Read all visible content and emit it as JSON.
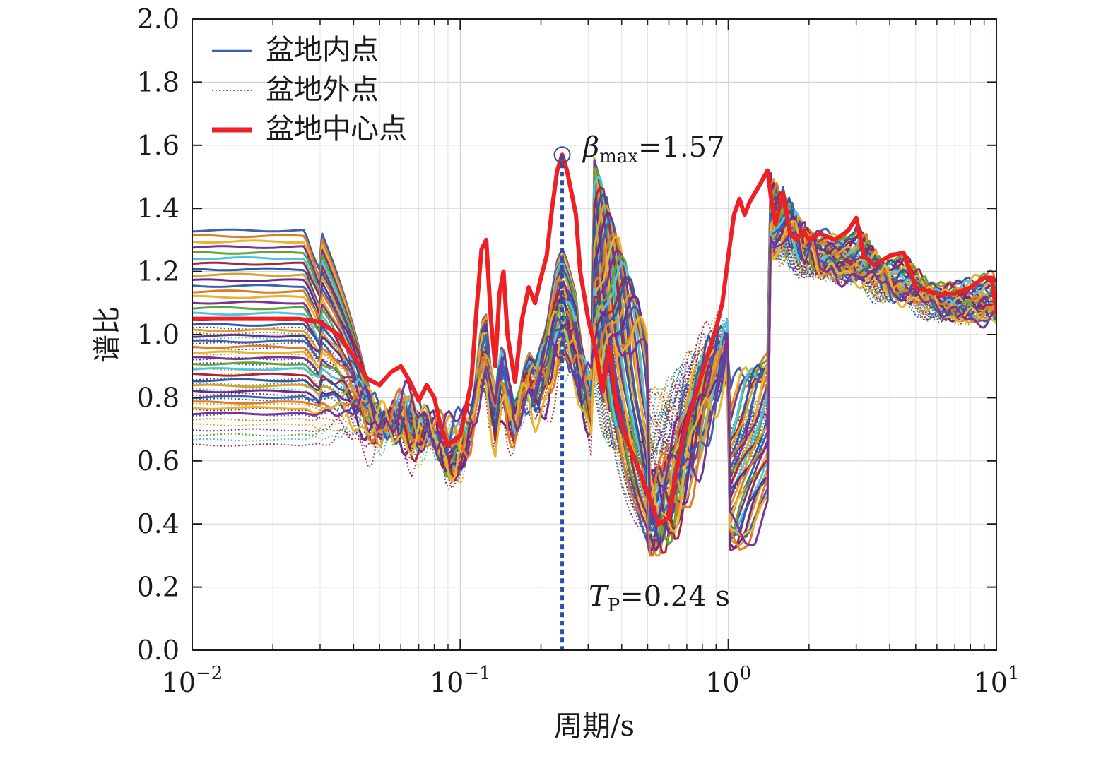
{
  "chart_data": {
    "type": "line",
    "xlabel": "周期/s",
    "ylabel": "谱比",
    "xscale": "log",
    "xlim": [
      0.01,
      10
    ],
    "ylim": [
      0,
      2
    ],
    "grid": true,
    "legend_position": "top-left",
    "x_ticks": [
      {
        "base": "10",
        "exp": "−2",
        "value": 0.01
      },
      {
        "base": "10",
        "exp": "−1",
        "value": 0.1
      },
      {
        "base": "10",
        "exp": "0",
        "value": 1
      },
      {
        "base": "10",
        "exp": "1",
        "value": 10
      }
    ],
    "y_ticks": [
      "0.0",
      "0.2",
      "0.4",
      "0.6",
      "0.8",
      "1.0",
      "1.2",
      "1.4",
      "1.6",
      "1.8",
      "2.0"
    ],
    "legend": [
      {
        "label": "盆地内点",
        "color": "#3a62b0",
        "style": "solid"
      },
      {
        "label": "盆地外点",
        "color": "#b5562a",
        "style": "dotted"
      },
      {
        "label": "盆地中心点",
        "color": "#ee2024",
        "style": "thick"
      }
    ],
    "annotations": {
      "beta": {
        "symbol": "β",
        "sub": "max",
        "text": "=1.57",
        "x": 0.24,
        "y": 1.57
      },
      "tp": {
        "symbol": "T",
        "sub": "P",
        "text": "=0.24 s",
        "x": 0.24
      }
    },
    "palette": [
      "#3a62b0",
      "#e07a26",
      "#e8b42c",
      "#7b3294",
      "#5aa83a",
      "#4fc3e0",
      "#a8283a",
      "#2a5aa8",
      "#d9a030",
      "#6a2c8c"
    ],
    "center_series": {
      "name": "盆地中心点",
      "color": "#ee2024",
      "points": [
        [
          0.01,
          1.05
        ],
        [
          0.025,
          1.05
        ],
        [
          0.03,
          1.04
        ],
        [
          0.035,
          1.0
        ],
        [
          0.04,
          0.93
        ],
        [
          0.045,
          0.86
        ],
        [
          0.05,
          0.84
        ],
        [
          0.055,
          0.88
        ],
        [
          0.06,
          0.9
        ],
        [
          0.065,
          0.85
        ],
        [
          0.07,
          0.79
        ],
        [
          0.075,
          0.84
        ],
        [
          0.08,
          0.8
        ],
        [
          0.085,
          0.7
        ],
        [
          0.09,
          0.65
        ],
        [
          0.1,
          0.68
        ],
        [
          0.11,
          0.85
        ],
        [
          0.115,
          1.08
        ],
        [
          0.12,
          1.27
        ],
        [
          0.125,
          1.3
        ],
        [
          0.13,
          1.05
        ],
        [
          0.135,
          0.9
        ],
        [
          0.14,
          1.13
        ],
        [
          0.145,
          1.2
        ],
        [
          0.15,
          1.0
        ],
        [
          0.16,
          0.85
        ],
        [
          0.17,
          1.05
        ],
        [
          0.18,
          1.15
        ],
        [
          0.19,
          1.1
        ],
        [
          0.2,
          1.18
        ],
        [
          0.21,
          1.25
        ],
        [
          0.22,
          1.4
        ],
        [
          0.23,
          1.52
        ],
        [
          0.24,
          1.57
        ],
        [
          0.25,
          1.52
        ],
        [
          0.26,
          1.45
        ],
        [
          0.27,
          1.38
        ],
        [
          0.28,
          1.2
        ],
        [
          0.3,
          1.05
        ],
        [
          0.32,
          0.95
        ],
        [
          0.34,
          0.82
        ],
        [
          0.36,
          0.96
        ],
        [
          0.38,
          0.8
        ],
        [
          0.4,
          0.72
        ],
        [
          0.42,
          0.66
        ],
        [
          0.45,
          0.6
        ],
        [
          0.5,
          0.5
        ],
        [
          0.55,
          0.4
        ],
        [
          0.6,
          0.42
        ],
        [
          0.65,
          0.6
        ],
        [
          0.7,
          0.72
        ],
        [
          0.75,
          0.8
        ],
        [
          0.8,
          0.88
        ],
        [
          0.85,
          0.95
        ],
        [
          0.9,
          1.02
        ],
        [
          0.95,
          1.1
        ],
        [
          1.0,
          1.25
        ],
        [
          1.05,
          1.38
        ],
        [
          1.1,
          1.43
        ],
        [
          1.15,
          1.38
        ],
        [
          1.2,
          1.42
        ],
        [
          1.3,
          1.47
        ],
        [
          1.4,
          1.52
        ],
        [
          1.45,
          1.42
        ],
        [
          1.5,
          1.35
        ],
        [
          1.6,
          1.45
        ],
        [
          1.7,
          1.32
        ],
        [
          1.8,
          1.3
        ],
        [
          1.9,
          1.33
        ],
        [
          2.0,
          1.3
        ],
        [
          2.2,
          1.32
        ],
        [
          2.5,
          1.3
        ],
        [
          2.8,
          1.33
        ],
        [
          3.0,
          1.37
        ],
        [
          3.2,
          1.25
        ],
        [
          3.5,
          1.22
        ],
        [
          4.0,
          1.25
        ],
        [
          4.5,
          1.26
        ],
        [
          5.0,
          1.15
        ],
        [
          6.0,
          1.13
        ],
        [
          7.0,
          1.13
        ],
        [
          8.0,
          1.15
        ],
        [
          9.0,
          1.18
        ],
        [
          9.6,
          1.18
        ],
        [
          10.0,
          1.07
        ]
      ]
    },
    "inside_bundle": {
      "description_count": 34,
      "top_low_start": 1.33,
      "bottom_low_start": 0.75,
      "peak_value": 1.55
    },
    "outside_bundle": {
      "description_count": 24,
      "top_low_start": 1.02,
      "bottom_low_start": 0.65,
      "high_end": 1.05
    }
  }
}
